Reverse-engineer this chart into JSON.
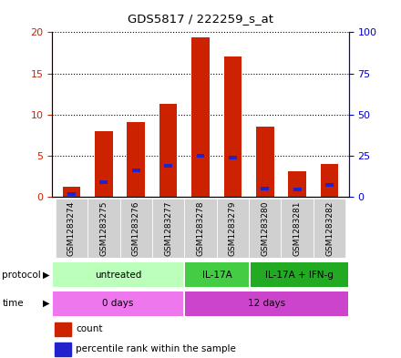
{
  "title": "GDS5817 / 222259_s_at",
  "samples": [
    "GSM1283274",
    "GSM1283275",
    "GSM1283276",
    "GSM1283277",
    "GSM1283278",
    "GSM1283279",
    "GSM1283280",
    "GSM1283281",
    "GSM1283282"
  ],
  "count_values": [
    1.2,
    8.0,
    9.1,
    11.3,
    19.4,
    17.0,
    8.5,
    3.1,
    4.0
  ],
  "percentile_values": [
    0.3,
    1.8,
    3.2,
    3.8,
    5.0,
    4.8,
    1.0,
    0.9,
    1.5
  ],
  "bar_color": "#cc2200",
  "pct_color": "#2222cc",
  "ylim_left": [
    0,
    20
  ],
  "ylim_right": [
    0,
    100
  ],
  "yticks_left": [
    0,
    5,
    10,
    15,
    20
  ],
  "yticks_right": [
    0,
    25,
    50,
    75,
    100
  ],
  "protocol_groups": [
    {
      "label": "untreated",
      "start": 0,
      "end": 4,
      "color": "#bbffbb"
    },
    {
      "label": "IL-17A",
      "start": 4,
      "end": 6,
      "color": "#44cc44"
    },
    {
      "label": "IL-17A + IFN-g",
      "start": 6,
      "end": 9,
      "color": "#22aa22"
    }
  ],
  "time_groups": [
    {
      "label": "0 days",
      "start": 0,
      "end": 4,
      "color": "#ee77ee"
    },
    {
      "label": "12 days",
      "start": 4,
      "end": 9,
      "color": "#cc44cc"
    }
  ],
  "bar_width": 0.55,
  "legend_count_label": "count",
  "legend_pct_label": "percentile rank within the sample",
  "left_tick_color": "#cc2200",
  "right_tick_color": "#0000cc",
  "sample_box_color": "#d0d0d0"
}
